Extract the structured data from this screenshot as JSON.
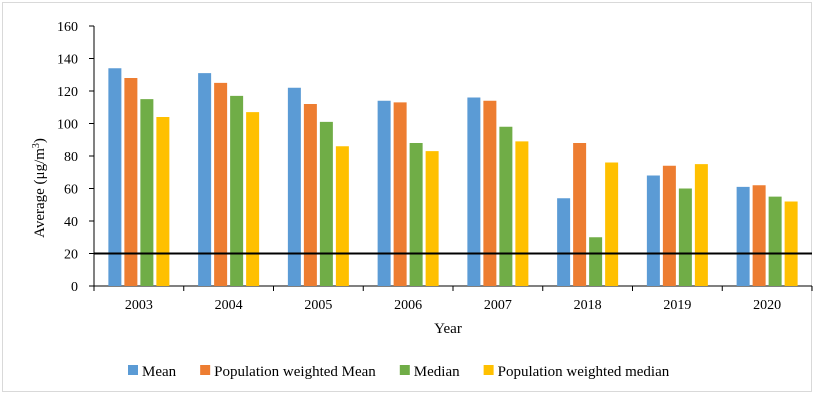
{
  "chart_data": {
    "type": "bar",
    "categories": [
      "2003",
      "2004",
      "2005",
      "2006",
      "2007",
      "2018",
      "2019",
      "2020"
    ],
    "series": [
      {
        "name": "Mean",
        "color": "#5B9BD5",
        "values": [
          134,
          131,
          122,
          114,
          116,
          54,
          68,
          61
        ]
      },
      {
        "name": "Population weighted Mean",
        "color": "#ED7D31",
        "values": [
          128,
          125,
          112,
          113,
          114,
          88,
          74,
          62
        ]
      },
      {
        "name": "Median",
        "color": "#70AD47",
        "values": [
          115,
          117,
          101,
          88,
          98,
          30,
          60,
          55
        ]
      },
      {
        "name": "Population weighted median",
        "color": "#FFC000",
        "values": [
          104,
          107,
          86,
          83,
          89,
          76,
          75,
          52
        ]
      }
    ],
    "xlabel": "Year",
    "ylabel": "Average (μg/m³)",
    "ylim": [
      0,
      160
    ],
    "yticks": [
      "0",
      "20",
      "40",
      "60",
      "80",
      "100",
      "120",
      "140",
      "160"
    ],
    "reference_line": {
      "value": 20,
      "color": "#000000"
    },
    "grid": false,
    "legend_position": "bottom"
  }
}
